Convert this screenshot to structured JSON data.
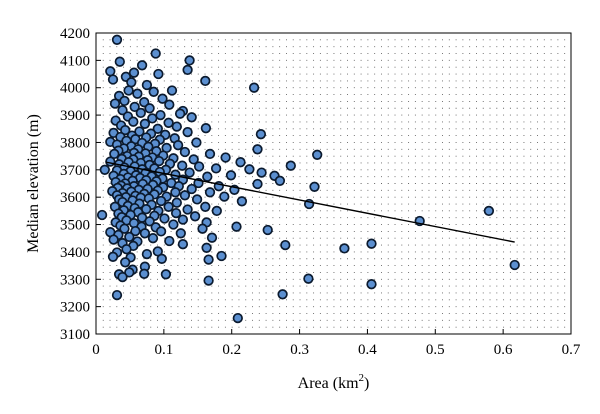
{
  "chart_data": {
    "type": "scatter",
    "xlabel_base": "Area (km",
    "xlabel_sup": "2",
    "xlabel_close": ")",
    "ylabel": "Median elevation (m)",
    "xlim": [
      0,
      0.7
    ],
    "ylim": [
      3100,
      4200
    ],
    "xticks": [
      0,
      0.1,
      0.2,
      0.3,
      0.4,
      0.5,
      0.6,
      0.7
    ],
    "xtick_labels": [
      "0",
      "0.1",
      "0.2",
      "0.3",
      "0.4",
      "0.5",
      "0.6",
      "0.7"
    ],
    "yticks": [
      3100,
      3200,
      3300,
      3400,
      3500,
      3600,
      3700,
      3800,
      3900,
      4000,
      4100,
      4200
    ],
    "ytick_labels": [
      "3100",
      "3200",
      "3300",
      "3400",
      "3500",
      "3600",
      "3700",
      "3800",
      "3900",
      "4000",
      "4100",
      "4200"
    ],
    "grid": "dotted",
    "marker_fill": "#5b8fd0",
    "marker_edge": "#0b1a2e",
    "trendline": {
      "x": [
        0.015,
        0.617
      ],
      "y": [
        3728,
        3436
      ],
      "color": "#000000"
    },
    "points": [
      [
        0.031,
        4175
      ],
      [
        0.088,
        4125
      ],
      [
        0.138,
        4100
      ],
      [
        0.035,
        4095
      ],
      [
        0.021,
        4060
      ],
      [
        0.135,
        4065
      ],
      [
        0.068,
        4082
      ],
      [
        0.056,
        4055
      ],
      [
        0.092,
        4050
      ],
      [
        0.044,
        4040
      ],
      [
        0.025,
        4030
      ],
      [
        0.161,
        4025
      ],
      [
        0.052,
        4020
      ],
      [
        0.075,
        4010
      ],
      [
        0.233,
        4000
      ],
      [
        0.048,
        3990
      ],
      [
        0.085,
        3985
      ],
      [
        0.061,
        3978
      ],
      [
        0.112,
        3990
      ],
      [
        0.034,
        3970
      ],
      [
        0.098,
        3960
      ],
      [
        0.042,
        3952
      ],
      [
        0.071,
        3947
      ],
      [
        0.028,
        3942
      ],
      [
        0.108,
        3938
      ],
      [
        0.128,
        3915
      ],
      [
        0.057,
        3930
      ],
      [
        0.079,
        3925
      ],
      [
        0.039,
        3918
      ],
      [
        0.124,
        3905
      ],
      [
        0.066,
        3908
      ],
      [
        0.095,
        3900
      ],
      [
        0.047,
        3895
      ],
      [
        0.141,
        3892
      ],
      [
        0.083,
        3888
      ],
      [
        0.029,
        3880
      ],
      [
        0.055,
        3876
      ],
      [
        0.107,
        3872
      ],
      [
        0.072,
        3868
      ],
      [
        0.037,
        3862
      ],
      [
        0.119,
        3858
      ],
      [
        0.162,
        3852
      ],
      [
        0.091,
        3850
      ],
      [
        0.043,
        3845
      ],
      [
        0.064,
        3840
      ],
      [
        0.135,
        3838
      ],
      [
        0.026,
        3835
      ],
      [
        0.081,
        3832
      ],
      [
        0.102,
        3828
      ],
      [
        0.053,
        3825
      ],
      [
        0.243,
        3830
      ],
      [
        0.036,
        3820
      ],
      [
        0.074,
        3818
      ],
      [
        0.116,
        3815
      ],
      [
        0.058,
        3812
      ],
      [
        0.094,
        3810
      ],
      [
        0.045,
        3806
      ],
      [
        0.021,
        3802
      ],
      [
        0.148,
        3800
      ],
      [
        0.068,
        3798
      ],
      [
        0.087,
        3795
      ],
      [
        0.031,
        3792
      ],
      [
        0.121,
        3790
      ],
      [
        0.052,
        3786
      ],
      [
        0.077,
        3784
      ],
      [
        0.104,
        3780
      ],
      [
        0.041,
        3778
      ],
      [
        0.062,
        3775
      ],
      [
        0.238,
        3775
      ],
      [
        0.033,
        3770
      ],
      [
        0.089,
        3768
      ],
      [
        0.131,
        3765
      ],
      [
        0.056,
        3762
      ],
      [
        0.073,
        3760
      ],
      [
        0.027,
        3758
      ],
      [
        0.168,
        3758
      ],
      [
        0.326,
        3755
      ],
      [
        0.099,
        3752
      ],
      [
        0.046,
        3750
      ],
      [
        0.063,
        3748
      ],
      [
        0.083,
        3745
      ],
      [
        0.114,
        3742
      ],
      [
        0.191,
        3745
      ],
      [
        0.038,
        3740
      ],
      [
        0.055,
        3738
      ],
      [
        0.144,
        3738
      ],
      [
        0.076,
        3735
      ],
      [
        0.093,
        3732
      ],
      [
        0.021,
        3730
      ],
      [
        0.048,
        3728
      ],
      [
        0.066,
        3725
      ],
      [
        0.109,
        3722
      ],
      [
        0.213,
        3728
      ],
      [
        0.287,
        3715
      ],
      [
        0.034,
        3720
      ],
      [
        0.079,
        3718
      ],
      [
        0.127,
        3715
      ],
      [
        0.152,
        3712
      ],
      [
        0.057,
        3712
      ],
      [
        0.042,
        3708
      ],
      [
        0.086,
        3705
      ],
      [
        0.013,
        3700
      ],
      [
        0.068,
        3702
      ],
      [
        0.103,
        3700
      ],
      [
        0.177,
        3705
      ],
      [
        0.226,
        3702
      ],
      [
        0.031,
        3698
      ],
      [
        0.051,
        3695
      ],
      [
        0.094,
        3692
      ],
      [
        0.138,
        3690
      ],
      [
        0.244,
        3690
      ],
      [
        0.073,
        3688
      ],
      [
        0.041,
        3685
      ],
      [
        0.117,
        3682
      ],
      [
        0.059,
        3680
      ],
      [
        0.026,
        3678
      ],
      [
        0.082,
        3676
      ],
      [
        0.199,
        3680
      ],
      [
        0.263,
        3678
      ],
      [
        0.164,
        3675
      ],
      [
        0.047,
        3672
      ],
      [
        0.065,
        3670
      ],
      [
        0.098,
        3668
      ],
      [
        0.036,
        3666
      ],
      [
        0.128,
        3664
      ],
      [
        0.074,
        3662
      ],
      [
        0.054,
        3660
      ],
      [
        0.271,
        3660
      ],
      [
        0.089,
        3658
      ],
      [
        0.029,
        3655
      ],
      [
        0.111,
        3652
      ],
      [
        0.151,
        3652
      ],
      [
        0.043,
        3650
      ],
      [
        0.069,
        3648
      ],
      [
        0.238,
        3648
      ],
      [
        0.084,
        3645
      ],
      [
        0.037,
        3642
      ],
      [
        0.122,
        3640
      ],
      [
        0.056,
        3640
      ],
      [
        0.181,
        3640
      ],
      [
        0.322,
        3638
      ],
      [
        0.099,
        3636
      ],
      [
        0.032,
        3634
      ],
      [
        0.046,
        3632
      ],
      [
        0.076,
        3630
      ],
      [
        0.141,
        3630
      ],
      [
        0.063,
        3627
      ],
      [
        0.204,
        3627
      ],
      [
        0.091,
        3624
      ],
      [
        0.024,
        3622
      ],
      [
        0.052,
        3620
      ],
      [
        0.117,
        3618
      ],
      [
        0.168,
        3618
      ],
      [
        0.039,
        3615
      ],
      [
        0.071,
        3612
      ],
      [
        0.086,
        3610
      ],
      [
        0.031,
        3607
      ],
      [
        0.131,
        3607
      ],
      [
        0.058,
        3605
      ],
      [
        0.104,
        3602
      ],
      [
        0.189,
        3602
      ],
      [
        0.044,
        3600
      ],
      [
        0.066,
        3598
      ],
      [
        0.078,
        3595
      ],
      [
        0.034,
        3592
      ],
      [
        0.149,
        3592
      ],
      [
        0.054,
        3588
      ],
      [
        0.096,
        3586
      ],
      [
        0.215,
        3585
      ],
      [
        0.039,
        3582
      ],
      [
        0.119,
        3580
      ],
      [
        0.314,
        3575
      ],
      [
        0.064,
        3576
      ],
      [
        0.082,
        3572
      ],
      [
        0.047,
        3568
      ],
      [
        0.028,
        3565
      ],
      [
        0.107,
        3565
      ],
      [
        0.161,
        3565
      ],
      [
        0.057,
        3560
      ],
      [
        0.074,
        3556
      ],
      [
        0.135,
        3555
      ],
      [
        0.041,
        3552
      ],
      [
        0.092,
        3550
      ],
      [
        0.178,
        3550
      ],
      [
        0.579,
        3550
      ],
      [
        0.062,
        3545
      ],
      [
        0.033,
        3540
      ],
      [
        0.118,
        3542
      ],
      [
        0.009,
        3535
      ],
      [
        0.051,
        3535
      ],
      [
        0.086,
        3532
      ],
      [
        0.146,
        3530
      ],
      [
        0.038,
        3527
      ],
      [
        0.068,
        3525
      ],
      [
        0.101,
        3522
      ],
      [
        0.128,
        3518
      ],
      [
        0.477,
        3513
      ],
      [
        0.045,
        3515
      ],
      [
        0.079,
        3512
      ],
      [
        0.029,
        3508
      ],
      [
        0.163,
        3508
      ],
      [
        0.056,
        3505
      ],
      [
        0.114,
        3500
      ],
      [
        0.036,
        3496
      ],
      [
        0.067,
        3492
      ],
      [
        0.088,
        3490
      ],
      [
        0.207,
        3492
      ],
      [
        0.042,
        3485
      ],
      [
        0.157,
        3485
      ],
      [
        0.253,
        3480
      ],
      [
        0.058,
        3476
      ],
      [
        0.096,
        3475
      ],
      [
        0.021,
        3472
      ],
      [
        0.072,
        3468
      ],
      [
        0.125,
        3468
      ],
      [
        0.033,
        3462
      ],
      [
        0.049,
        3455
      ],
      [
        0.084,
        3450
      ],
      [
        0.171,
        3452
      ],
      [
        0.026,
        3445
      ],
      [
        0.108,
        3440
      ],
      [
        0.061,
        3438
      ],
      [
        0.039,
        3432
      ],
      [
        0.128,
        3428
      ],
      [
        0.279,
        3425
      ],
      [
        0.406,
        3430
      ],
      [
        0.055,
        3422
      ],
      [
        0.163,
        3415
      ],
      [
        0.366,
        3413
      ],
      [
        0.045,
        3410
      ],
      [
        0.091,
        3402
      ],
      [
        0.031,
        3398
      ],
      [
        0.075,
        3392
      ],
      [
        0.185,
        3385
      ],
      [
        0.051,
        3380
      ],
      [
        0.025,
        3382
      ],
      [
        0.097,
        3375
      ],
      [
        0.166,
        3372
      ],
      [
        0.043,
        3362
      ],
      [
        0.617,
        3352
      ],
      [
        0.072,
        3346
      ],
      [
        0.054,
        3335
      ],
      [
        0.049,
        3325
      ],
      [
        0.071,
        3320
      ],
      [
        0.034,
        3318
      ],
      [
        0.103,
        3318
      ],
      [
        0.313,
        3302
      ],
      [
        0.166,
        3295
      ],
      [
        0.039,
        3308
      ],
      [
        0.406,
        3282
      ],
      [
        0.275,
        3245
      ],
      [
        0.031,
        3242
      ],
      [
        0.209,
        3158
      ]
    ]
  }
}
